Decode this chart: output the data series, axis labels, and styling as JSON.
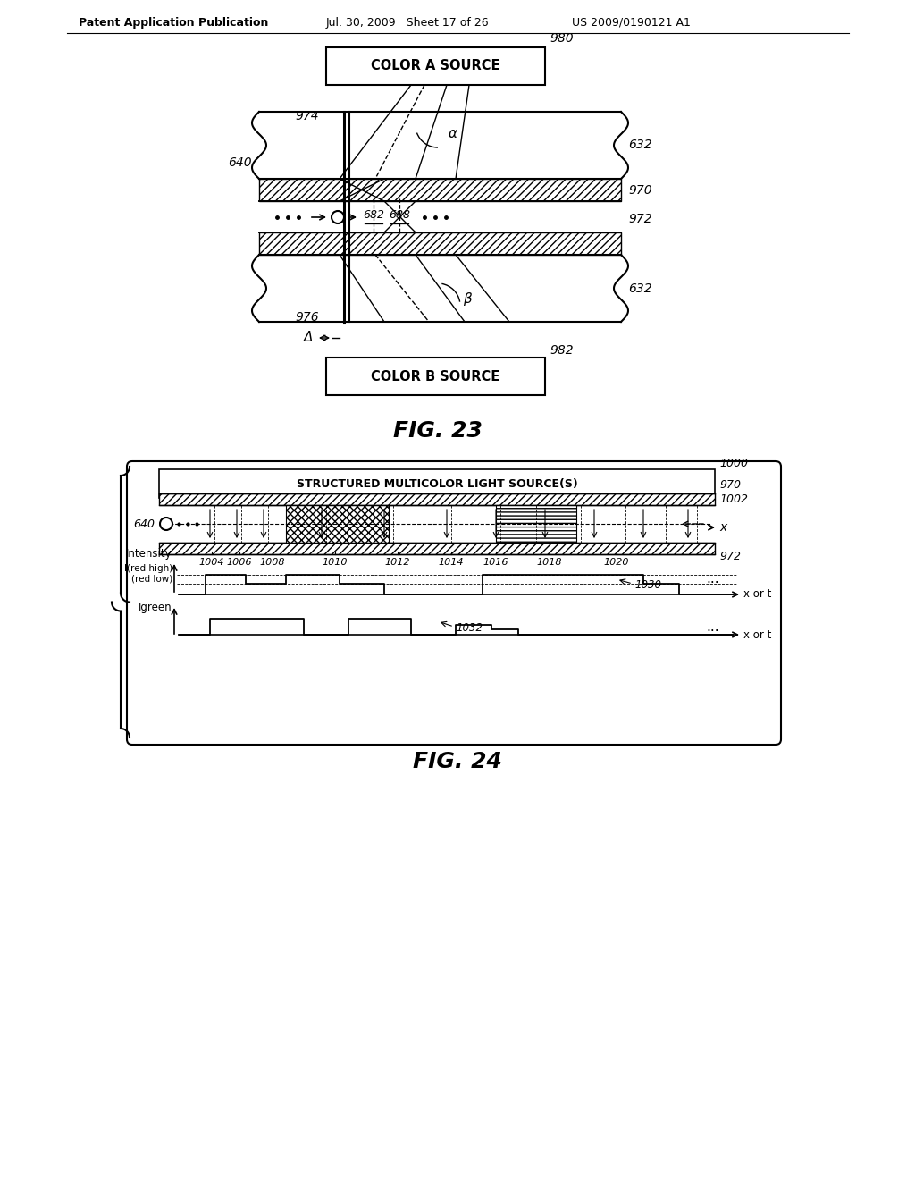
{
  "bg_color": "#ffffff",
  "header_text": "Patent Application Publication",
  "header_date": "Jul. 30, 2009   Sheet 17 of 26",
  "header_patent": "US 2009/0190121 A1",
  "fig23_label": "FIG. 23",
  "fig24_label": "FIG. 24",
  "fig23": {
    "color_a_source": "COLOR A SOURCE",
    "color_b_source": "COLOR B SOURCE",
    "label_980": "980",
    "label_982": "982",
    "label_974": "974",
    "label_976": "976",
    "label_640": "640",
    "label_632a": "632",
    "label_632b": "632",
    "label_970": "970",
    "label_972": "972",
    "label_682": "682",
    "label_688": "688",
    "label_alpha": "α",
    "label_beta": "β",
    "label_delta": "Δ"
  },
  "fig24": {
    "box_label": "STRUCTURED MULTICOLOR LIGHT SOURCE(S)",
    "label_1000": "1000",
    "label_970": "970",
    "label_1002": "1002",
    "label_640": "640",
    "label_972": "972",
    "label_x": "x",
    "label_1004": "1004",
    "label_1006": "1006",
    "label_1008": "1008",
    "label_1010": "1010",
    "label_1012": "1012",
    "label_1014": "1014",
    "label_1016": "1016",
    "label_1018": "1018",
    "label_1020": "1020",
    "label_intensity": "Intensity",
    "label_ired_high": "I(red high)",
    "label_ired_low": "I(red low)",
    "label_igreen": "Igreen",
    "label_xort1": "x or t",
    "label_xort2": "x or t",
    "label_1030": "1030",
    "label_1032": "1032",
    "label_dots": "..."
  }
}
